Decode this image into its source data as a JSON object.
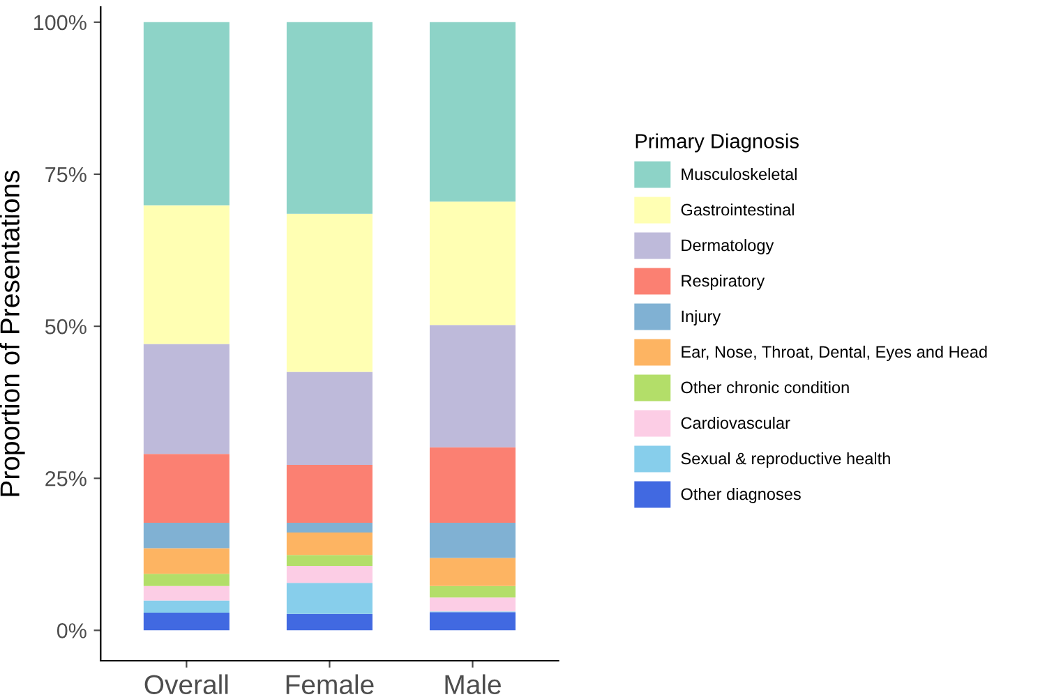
{
  "chart_data": {
    "type": "bar",
    "stacked": true,
    "ylabel": "Proportion of Presentations",
    "legend_title": "Primary Diagnosis",
    "legend": "right",
    "grid": false,
    "categories": [
      "Overall",
      "Female",
      "Male"
    ],
    "ylim": [
      -5,
      102.5
    ],
    "yticks": [
      {
        "value": 0,
        "label": "0%"
      },
      {
        "value": 25,
        "label": "25%"
      },
      {
        "value": 50,
        "label": "50%"
      },
      {
        "value": 75,
        "label": "75%"
      },
      {
        "value": 100,
        "label": "100%"
      }
    ],
    "series": [
      {
        "name": "Other diagnoses",
        "color": "#4169e1",
        "values": [
          2.9,
          2.7,
          3.0
        ]
      },
      {
        "name": "Sexual & reproductive health",
        "color": "#87ceeb",
        "values": [
          2.0,
          5.1,
          0.1
        ]
      },
      {
        "name": "Cardiovascular",
        "color": "#fccde5",
        "values": [
          2.4,
          2.8,
          2.3
        ]
      },
      {
        "name": "Other chronic condition",
        "color": "#b3de69",
        "values": [
          2.0,
          1.8,
          1.9
        ]
      },
      {
        "name": "Ear, Nose, Throat, Dental, Eyes and Head",
        "color": "#fdb462",
        "values": [
          4.2,
          3.7,
          4.6
        ]
      },
      {
        "name": "Injury",
        "color": "#80b1d3",
        "values": [
          4.2,
          1.6,
          5.8
        ]
      },
      {
        "name": "Respiratory",
        "color": "#fb8072",
        "values": [
          11.3,
          9.5,
          12.4
        ]
      },
      {
        "name": "Dermatology",
        "color": "#bebada",
        "values": [
          18.1,
          15.3,
          20.1
        ]
      },
      {
        "name": "Gastrointestinal",
        "color": "#ffffb3",
        "values": [
          22.8,
          26.0,
          20.3
        ]
      },
      {
        "name": "Musculoskeletal",
        "color": "#8dd3c7",
        "values": [
          30.1,
          31.5,
          29.5
        ]
      }
    ]
  }
}
